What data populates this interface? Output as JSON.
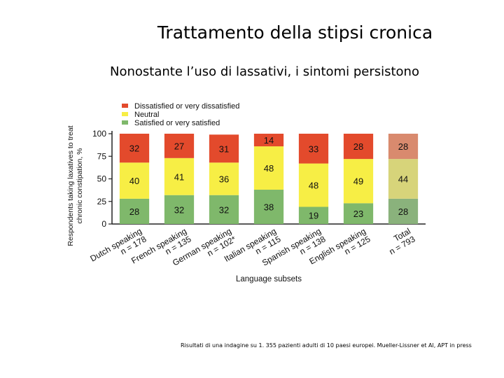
{
  "slide": {
    "title": "Trattamento della stipsi cronica",
    "subtitle": "Nonostante l’uso di lassativi, i sintomi persistono",
    "footnote": "Risultati di una indagine su 1. 355 pazienti adulti di 10 paesi europei. Mueller-Lissner et Al, APT in press"
  },
  "colors": {
    "dissatisfied": "#e34a2c",
    "neutral": "#f7ee45",
    "satisfied": "#7fb86b",
    "dissatisfied_total": "#d98a6e",
    "neutral_total": "#d7d47a",
    "satisfied_total": "#8ab27c"
  },
  "chart_data": {
    "type": "bar",
    "stacked": true,
    "categories": [
      "Dutch speaking\nn = 178",
      "French speaking\nn = 135",
      "German speaking\nn = 102*",
      "Italian speaking\nn = 115",
      "Spanish speaking\nn = 138",
      "English speaking\nn = 125",
      "Total\nn = 793"
    ],
    "series": [
      {
        "name": "Satisfied or very satisfied",
        "values": [
          28,
          32,
          32,
          38,
          19,
          23,
          28
        ]
      },
      {
        "name": "Neutral",
        "values": [
          40,
          41,
          36,
          48,
          48,
          49,
          44
        ]
      },
      {
        "name": "Dissatisfied or very dissatisfied",
        "values": [
          32,
          27,
          31,
          14,
          33,
          28,
          28
        ]
      }
    ],
    "legend_order": [
      "Dissatisfied or very dissatisfied",
      "Neutral",
      "Satisfied or very satisfied"
    ],
    "legend_position": "top",
    "ylabel": "Respondents taking laxatives to treat chronic constipation, %",
    "xlabel": "Language subsets",
    "yticks": [
      0,
      25,
      50,
      75,
      100
    ],
    "ylim": [
      0,
      100
    ]
  }
}
